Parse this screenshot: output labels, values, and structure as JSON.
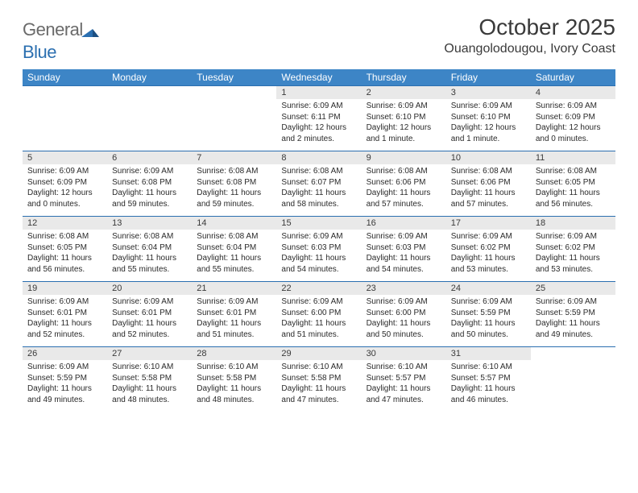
{
  "logo": {
    "word1": "General",
    "word2": "Blue"
  },
  "title": "October 2025",
  "location": "Ouangolodougou, Ivory Coast",
  "colors": {
    "header_bg": "#3d85c6",
    "header_text": "#ffffff",
    "daynum_bg": "#e9e9e9",
    "rule": "#2b6fb0",
    "text": "#2a2a2a",
    "logo_gray": "#6a6a6a",
    "logo_blue": "#2b6fb0"
  },
  "weekdays": [
    "Sunday",
    "Monday",
    "Tuesday",
    "Wednesday",
    "Thursday",
    "Friday",
    "Saturday"
  ],
  "weeks": [
    [
      {
        "n": "",
        "sr": "",
        "ss": "",
        "dl": ""
      },
      {
        "n": "",
        "sr": "",
        "ss": "",
        "dl": ""
      },
      {
        "n": "",
        "sr": "",
        "ss": "",
        "dl": ""
      },
      {
        "n": "1",
        "sr": "Sunrise: 6:09 AM",
        "ss": "Sunset: 6:11 PM",
        "dl": "Daylight: 12 hours and 2 minutes."
      },
      {
        "n": "2",
        "sr": "Sunrise: 6:09 AM",
        "ss": "Sunset: 6:10 PM",
        "dl": "Daylight: 12 hours and 1 minute."
      },
      {
        "n": "3",
        "sr": "Sunrise: 6:09 AM",
        "ss": "Sunset: 6:10 PM",
        "dl": "Daylight: 12 hours and 1 minute."
      },
      {
        "n": "4",
        "sr": "Sunrise: 6:09 AM",
        "ss": "Sunset: 6:09 PM",
        "dl": "Daylight: 12 hours and 0 minutes."
      }
    ],
    [
      {
        "n": "5",
        "sr": "Sunrise: 6:09 AM",
        "ss": "Sunset: 6:09 PM",
        "dl": "Daylight: 12 hours and 0 minutes."
      },
      {
        "n": "6",
        "sr": "Sunrise: 6:09 AM",
        "ss": "Sunset: 6:08 PM",
        "dl": "Daylight: 11 hours and 59 minutes."
      },
      {
        "n": "7",
        "sr": "Sunrise: 6:08 AM",
        "ss": "Sunset: 6:08 PM",
        "dl": "Daylight: 11 hours and 59 minutes."
      },
      {
        "n": "8",
        "sr": "Sunrise: 6:08 AM",
        "ss": "Sunset: 6:07 PM",
        "dl": "Daylight: 11 hours and 58 minutes."
      },
      {
        "n": "9",
        "sr": "Sunrise: 6:08 AM",
        "ss": "Sunset: 6:06 PM",
        "dl": "Daylight: 11 hours and 57 minutes."
      },
      {
        "n": "10",
        "sr": "Sunrise: 6:08 AM",
        "ss": "Sunset: 6:06 PM",
        "dl": "Daylight: 11 hours and 57 minutes."
      },
      {
        "n": "11",
        "sr": "Sunrise: 6:08 AM",
        "ss": "Sunset: 6:05 PM",
        "dl": "Daylight: 11 hours and 56 minutes."
      }
    ],
    [
      {
        "n": "12",
        "sr": "Sunrise: 6:08 AM",
        "ss": "Sunset: 6:05 PM",
        "dl": "Daylight: 11 hours and 56 minutes."
      },
      {
        "n": "13",
        "sr": "Sunrise: 6:08 AM",
        "ss": "Sunset: 6:04 PM",
        "dl": "Daylight: 11 hours and 55 minutes."
      },
      {
        "n": "14",
        "sr": "Sunrise: 6:08 AM",
        "ss": "Sunset: 6:04 PM",
        "dl": "Daylight: 11 hours and 55 minutes."
      },
      {
        "n": "15",
        "sr": "Sunrise: 6:09 AM",
        "ss": "Sunset: 6:03 PM",
        "dl": "Daylight: 11 hours and 54 minutes."
      },
      {
        "n": "16",
        "sr": "Sunrise: 6:09 AM",
        "ss": "Sunset: 6:03 PM",
        "dl": "Daylight: 11 hours and 54 minutes."
      },
      {
        "n": "17",
        "sr": "Sunrise: 6:09 AM",
        "ss": "Sunset: 6:02 PM",
        "dl": "Daylight: 11 hours and 53 minutes."
      },
      {
        "n": "18",
        "sr": "Sunrise: 6:09 AM",
        "ss": "Sunset: 6:02 PM",
        "dl": "Daylight: 11 hours and 53 minutes."
      }
    ],
    [
      {
        "n": "19",
        "sr": "Sunrise: 6:09 AM",
        "ss": "Sunset: 6:01 PM",
        "dl": "Daylight: 11 hours and 52 minutes."
      },
      {
        "n": "20",
        "sr": "Sunrise: 6:09 AM",
        "ss": "Sunset: 6:01 PM",
        "dl": "Daylight: 11 hours and 52 minutes."
      },
      {
        "n": "21",
        "sr": "Sunrise: 6:09 AM",
        "ss": "Sunset: 6:01 PM",
        "dl": "Daylight: 11 hours and 51 minutes."
      },
      {
        "n": "22",
        "sr": "Sunrise: 6:09 AM",
        "ss": "Sunset: 6:00 PM",
        "dl": "Daylight: 11 hours and 51 minutes."
      },
      {
        "n": "23",
        "sr": "Sunrise: 6:09 AM",
        "ss": "Sunset: 6:00 PM",
        "dl": "Daylight: 11 hours and 50 minutes."
      },
      {
        "n": "24",
        "sr": "Sunrise: 6:09 AM",
        "ss": "Sunset: 5:59 PM",
        "dl": "Daylight: 11 hours and 50 minutes."
      },
      {
        "n": "25",
        "sr": "Sunrise: 6:09 AM",
        "ss": "Sunset: 5:59 PM",
        "dl": "Daylight: 11 hours and 49 minutes."
      }
    ],
    [
      {
        "n": "26",
        "sr": "Sunrise: 6:09 AM",
        "ss": "Sunset: 5:59 PM",
        "dl": "Daylight: 11 hours and 49 minutes."
      },
      {
        "n": "27",
        "sr": "Sunrise: 6:10 AM",
        "ss": "Sunset: 5:58 PM",
        "dl": "Daylight: 11 hours and 48 minutes."
      },
      {
        "n": "28",
        "sr": "Sunrise: 6:10 AM",
        "ss": "Sunset: 5:58 PM",
        "dl": "Daylight: 11 hours and 48 minutes."
      },
      {
        "n": "29",
        "sr": "Sunrise: 6:10 AM",
        "ss": "Sunset: 5:58 PM",
        "dl": "Daylight: 11 hours and 47 minutes."
      },
      {
        "n": "30",
        "sr": "Sunrise: 6:10 AM",
        "ss": "Sunset: 5:57 PM",
        "dl": "Daylight: 11 hours and 47 minutes."
      },
      {
        "n": "31",
        "sr": "Sunrise: 6:10 AM",
        "ss": "Sunset: 5:57 PM",
        "dl": "Daylight: 11 hours and 46 minutes."
      },
      {
        "n": "",
        "sr": "",
        "ss": "",
        "dl": ""
      }
    ]
  ]
}
